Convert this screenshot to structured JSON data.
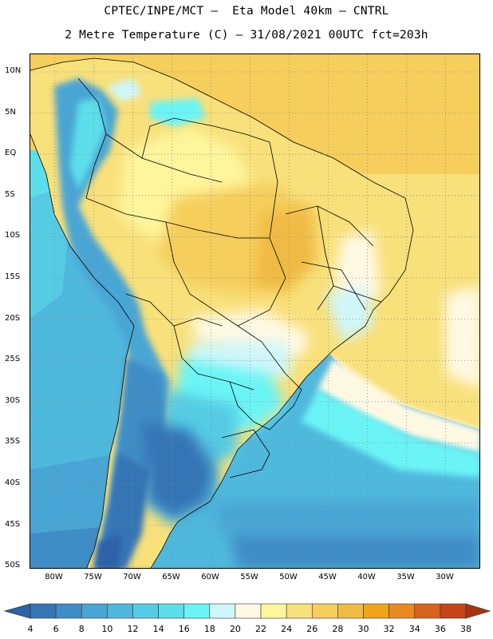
{
  "header": {
    "line1": "CPTEC/INPE/MCT –  Eta Model 40km – CNTRL",
    "line2": "2 Metre Temperature (C) – 31/08/2021 00UTC fct=203h"
  },
  "axes": {
    "lat_labels": [
      "10N",
      "5N",
      "EQ",
      "5S",
      "10S",
      "15S",
      "20S",
      "25S",
      "30S",
      "35S",
      "40S",
      "45S",
      "50S"
    ],
    "lon_labels": [
      "80W",
      "75W",
      "70W",
      "65W",
      "60W",
      "55W",
      "50W",
      "45W",
      "40W",
      "35W",
      "30W"
    ]
  },
  "colorbar": {
    "labels": [
      "4",
      "6",
      "8",
      "10",
      "12",
      "14",
      "16",
      "18",
      "20",
      "22",
      "24",
      "26",
      "28",
      "30",
      "32",
      "34",
      "36",
      "38"
    ],
    "colors": [
      "#2e62a8",
      "#3575b6",
      "#3f8dc6",
      "#49a5d4",
      "#4fb8dd",
      "#55cce4",
      "#5ddfea",
      "#6bf4f6",
      "#cff7fa",
      "#fff9e4",
      "#fff59c",
      "#f8e07a",
      "#f5ce5c",
      "#f0bb45",
      "#f0a418",
      "#e88a22",
      "#d8631c",
      "#c44416",
      "#a83412"
    ]
  },
  "colors": {
    "ocean_north": "#f5ce5c",
    "ocean_south": "#4fb8dd",
    "land_north": "#f8e07a",
    "andes": "#3f8dc6",
    "patagonia": "#3575b6",
    "border": "#000000",
    "grid": "#999999"
  }
}
